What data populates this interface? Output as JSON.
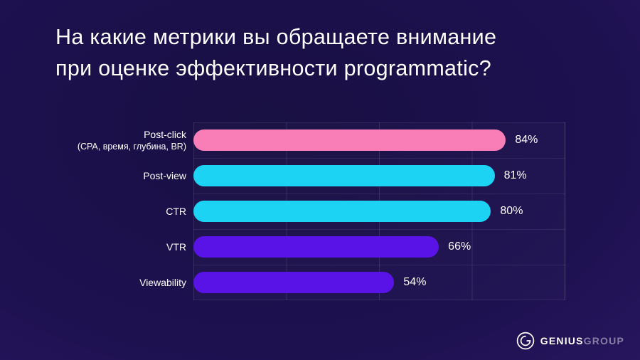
{
  "title": {
    "line1": "На какие метрики вы обращаете внимание",
    "line2": "при оценке эффективности programmatic?"
  },
  "chart_data": {
    "type": "bar",
    "orientation": "horizontal",
    "title": "На какие метрики вы обращаете внимание при оценке эффективности programmatic?",
    "categories": [
      "Post-click",
      "Post-view",
      "CTR",
      "VTR",
      "Viewability"
    ],
    "category_sublabels": [
      "(CPA, время, глубина, BR)",
      "",
      "",
      "",
      ""
    ],
    "values": [
      84,
      81,
      80,
      66,
      54
    ],
    "value_labels": [
      "84%",
      "81%",
      "80%",
      "66%",
      "54%"
    ],
    "unit": "%",
    "xlim": [
      0,
      100
    ],
    "bar_colors": [
      "#F97DB7",
      "#1CD3F3",
      "#1CD3F3",
      "#5A13E6",
      "#5A13E6"
    ],
    "grid": true,
    "gridlines_every_pct": 25,
    "legend": "none"
  },
  "logo": {
    "bold": "GENIUS",
    "light": "GROUP"
  },
  "colors": {
    "background_center": "#191043",
    "background_edge": "#3E2076",
    "title_text": "#FFFFFF",
    "bar_pink": "#F97DB7",
    "bar_cyan": "#1CD3F3",
    "bar_violet": "#5A13E6",
    "gridline": "rgba(255,255,255,0.10)"
  }
}
